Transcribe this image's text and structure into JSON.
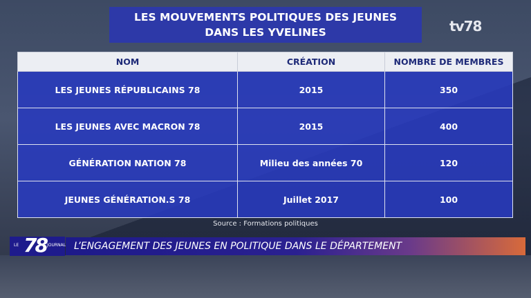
{
  "title": {
    "line1": "LES MOUVEMENTS POLITIQUES DES JEUNES",
    "line2": "DANS LES YVELINES"
  },
  "channel_logo": "tv78",
  "table": {
    "headers": [
      "NOM",
      "CRÉATION",
      "NOMBRE DE MEMBRES"
    ],
    "rows": [
      [
        "LES JEUNES RÉPUBLICAINS 78",
        "2015",
        "350"
      ],
      [
        "LES JEUNES AVEC MACRON 78",
        "2015",
        "400"
      ],
      [
        "GÉNÉRATION NATION 78",
        "Milieu des années 70",
        "120"
      ],
      [
        "JEUNES GÉNÉRATION.S 78",
        "Juillet 2017",
        "100"
      ]
    ]
  },
  "source": "Source : Formations politiques",
  "show_logo": {
    "le": "LE",
    "number": "78",
    "journal": "JOURNAL"
  },
  "lower_third": "L’ENGAGEMENT DES JEUNES EN POLITIQUE DANS LE DÉPARTEMENT",
  "colors": {
    "title_bg": "#2d39a8",
    "row_bg": "#283abe",
    "header_bg": "#eceef3",
    "header_text": "#1e2a78"
  }
}
